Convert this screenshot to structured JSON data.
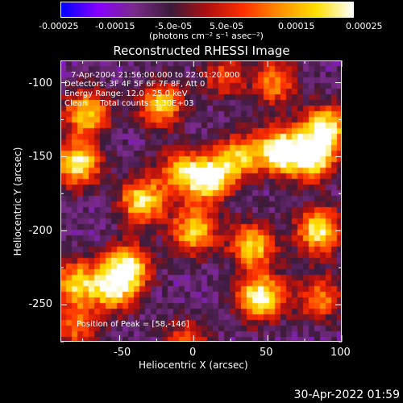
{
  "colorbar": {
    "ticks": [
      "-0.00025",
      "-0.00015",
      "-5.0e-05",
      "5.0e-05",
      "0.00015",
      "0.00025"
    ],
    "unit_label": "(photons cm⁻² s⁻¹ asec⁻²)",
    "range": [
      -0.00025,
      0.00025
    ],
    "colors": [
      "#0000ff",
      "#8800ff",
      "#7a2b8a",
      "#3b1b3b",
      "#b01010",
      "#ff3000",
      "#ff9000",
      "#ffe000",
      "#ffffff"
    ]
  },
  "title": "Reconstructed RHESSI Image",
  "info": {
    "line1": "7-Apr-2004 21:56:00.000 to 22:01:20.000",
    "line2": "Detectors: 3F 4F 5F 6F 7F 8F, Att 0",
    "line3": "Energy Range: 12.0 - 25.0 keV",
    "line4": "Clean     Total counts: 3.30E+03"
  },
  "peak": "Position of Peak = [58,-146]",
  "axes": {
    "xlabel": "Heliocentric X (arcsec)",
    "ylabel": "Heliocentric Y (arcsec)",
    "xticks": [
      "-50",
      "0",
      "50",
      "100"
    ],
    "yticks": [
      "-100",
      "-150",
      "-200",
      "-250"
    ]
  },
  "timestamp": "30-Apr-2022 01:59",
  "chart_data": {
    "type": "heatmap",
    "title": "Reconstructed RHESSI Image",
    "xlabel": "Heliocentric X (arcsec)",
    "ylabel": "Heliocentric Y (arcsec)",
    "xlim": [
      -90,
      100
    ],
    "ylim": [
      -275,
      -85
    ],
    "peak": [
      58,
      -146
    ],
    "hotspots": [
      {
        "x": -72,
        "y": -120,
        "level": 0.8
      },
      {
        "x": -78,
        "y": -155,
        "level": 0.9
      },
      {
        "x": -22,
        "y": -115,
        "level": 0.75
      },
      {
        "x": -10,
        "y": -160,
        "level": 0.6
      },
      {
        "x": 10,
        "y": -165,
        "level": 0.95
      },
      {
        "x": 0,
        "y": -200,
        "level": 0.8
      },
      {
        "x": -35,
        "y": -180,
        "level": 0.85
      },
      {
        "x": 30,
        "y": -150,
        "level": 0.7
      },
      {
        "x": 55,
        "y": -100,
        "level": 0.6
      },
      {
        "x": 58,
        "y": -146,
        "level": 1.0
      },
      {
        "x": 80,
        "y": -150,
        "level": 1.0
      },
      {
        "x": 85,
        "y": -200,
        "level": 0.9
      },
      {
        "x": 90,
        "y": -130,
        "level": 0.85
      },
      {
        "x": -55,
        "y": -240,
        "level": 0.7
      },
      {
        "x": -45,
        "y": -225,
        "level": 0.95
      },
      {
        "x": -80,
        "y": -235,
        "level": 0.75
      },
      {
        "x": -80,
        "y": -265,
        "level": 0.55
      },
      {
        "x": 45,
        "y": -245,
        "level": 1.0
      },
      {
        "x": 40,
        "y": -210,
        "level": 0.8
      },
      {
        "x": 85,
        "y": -245,
        "level": 0.6
      },
      {
        "x": -5,
        "y": -275,
        "level": 0.5
      },
      {
        "x": 20,
        "y": -95,
        "level": 0.45
      }
    ]
  }
}
